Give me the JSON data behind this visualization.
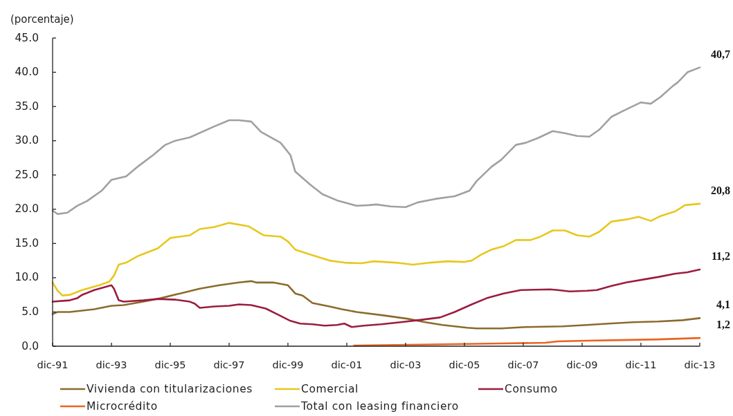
{
  "chart_data": {
    "type": "line",
    "ylabel": "(porcentaje)",
    "xlim": [
      "1991-12",
      "2013-12"
    ],
    "xticks": [
      {
        "value": "1991-12",
        "label": "dic-91"
      },
      {
        "value": "1993-12",
        "label": "dic-93"
      },
      {
        "value": "1995-12",
        "label": "dic-95"
      },
      {
        "value": "1997-12",
        "label": "dic-97"
      },
      {
        "value": "1999-12",
        "label": "dic-99"
      },
      {
        "value": "2001-12",
        "label": "dic-01"
      },
      {
        "value": "2003-12",
        "label": "dic-03"
      },
      {
        "value": "2005-12",
        "label": "dic-05"
      },
      {
        "value": "2007-12",
        "label": "dic-07"
      },
      {
        "value": "2009-12",
        "label": "dic-09"
      },
      {
        "value": "2011-12",
        "label": "dic-11"
      },
      {
        "value": "2013-12",
        "label": "dic-13"
      }
    ],
    "ylim": [
      0,
      45
    ],
    "yticks": [
      {
        "value": 0,
        "label": "0.0"
      },
      {
        "value": 5,
        "label": "5.0"
      },
      {
        "value": 10,
        "label": "10.0"
      },
      {
        "value": 15,
        "label": "15.0"
      },
      {
        "value": 20,
        "label": "20.0"
      },
      {
        "value": 25,
        "label": "25.0"
      },
      {
        "value": 30,
        "label": "30.0"
      },
      {
        "value": 35,
        "label": "35.0"
      },
      {
        "value": 40,
        "label": "40.0"
      },
      {
        "value": 45,
        "label": "45.0"
      }
    ],
    "legend": "bottom",
    "series": [
      {
        "name": "Vivienda con titularizaciones",
        "color": "#8b6a2c",
        "x": [
          "1991-12",
          "1992-02",
          "1992-07",
          "1993-05",
          "1993-12",
          "1994-05",
          "1995-01",
          "1995-08",
          "1996-04",
          "1996-12",
          "1997-08",
          "1998-04",
          "1998-09",
          "1998-11",
          "1999-06",
          "1999-12",
          "2000-03",
          "2000-06",
          "2000-10",
          "2001-05",
          "2001-10",
          "2002-04",
          "2003-03",
          "2004-01",
          "2004-08",
          "2005-03",
          "2006-01",
          "2006-05",
          "2007-03",
          "2008-01",
          "2009-04",
          "2010-02",
          "2010-11",
          "2011-09",
          "2012-07",
          "2013-05",
          "2013-12"
        ],
        "values": [
          4.7,
          5.0,
          5.0,
          5.4,
          5.9,
          6.0,
          6.5,
          7.0,
          7.7,
          8.4,
          8.9,
          9.3,
          9.5,
          9.3,
          9.3,
          8.9,
          7.7,
          7.4,
          6.3,
          5.8,
          5.4,
          5.0,
          4.5,
          4.0,
          3.5,
          3.1,
          2.7,
          2.6,
          2.6,
          2.8,
          2.9,
          3.1,
          3.3,
          3.5,
          3.6,
          3.8,
          4.1
        ],
        "value_labels": [
          null,
          null,
          null,
          null,
          null,
          null,
          null,
          null,
          null,
          null,
          null,
          null,
          null,
          null,
          null,
          null,
          null,
          null,
          null,
          null,
          null,
          null,
          null,
          null,
          null,
          null,
          null,
          null,
          null,
          null,
          null,
          null,
          null,
          null,
          null,
          null,
          "4,1"
        ]
      },
      {
        "name": "Comercial",
        "color": "#e6c81e",
        "x": [
          "1991-12",
          "1992-02",
          "1992-04",
          "1992-07",
          "1992-12",
          "1993-07",
          "1993-11",
          "1994-01",
          "1994-03",
          "1994-06",
          "1994-11",
          "1995-07",
          "1995-12",
          "1996-08",
          "1996-12",
          "1997-06",
          "1997-12",
          "1998-08",
          "1999-02",
          "1999-09",
          "1999-12",
          "2000-03",
          "2000-09",
          "2001-05",
          "2001-11",
          "2002-06",
          "2002-11",
          "2003-08",
          "2004-03",
          "2004-10",
          "2005-05",
          "2005-12",
          "2006-03",
          "2006-07",
          "2006-11",
          "2007-04",
          "2007-09",
          "2008-03",
          "2008-07",
          "2008-12",
          "2009-05",
          "2009-10",
          "2010-03",
          "2010-07",
          "2010-12",
          "2011-06",
          "2011-11",
          "2012-04",
          "2012-08",
          "2013-02",
          "2013-06",
          "2013-12"
        ],
        "values": [
          9.3,
          8.1,
          7.4,
          7.5,
          8.2,
          8.9,
          9.4,
          10.3,
          11.9,
          12.2,
          13.2,
          14.3,
          15.8,
          16.2,
          17.1,
          17.4,
          18.0,
          17.5,
          16.2,
          16.0,
          15.3,
          14.1,
          13.4,
          12.5,
          12.2,
          12.1,
          12.4,
          12.2,
          11.9,
          12.2,
          12.4,
          12.3,
          12.5,
          13.4,
          14.1,
          14.6,
          15.5,
          15.5,
          16.0,
          16.9,
          16.9,
          16.2,
          16.0,
          16.7,
          18.2,
          18.5,
          18.9,
          18.3,
          19.0,
          19.7,
          20.6,
          20.8
        ],
        "value_labels": [
          null,
          null,
          null,
          null,
          null,
          null,
          null,
          null,
          null,
          null,
          null,
          null,
          null,
          null,
          null,
          null,
          null,
          null,
          null,
          null,
          null,
          null,
          null,
          null,
          null,
          null,
          null,
          null,
          null,
          null,
          null,
          null,
          null,
          null,
          null,
          null,
          null,
          null,
          null,
          null,
          null,
          null,
          null,
          null,
          null,
          null,
          null,
          null,
          null,
          null,
          null,
          "20,8"
        ]
      },
      {
        "name": "Consumo",
        "color": "#9b1c3f",
        "x": [
          "1991-12",
          "1992-07",
          "1992-10",
          "1992-12",
          "1993-05",
          "1993-09",
          "1993-12",
          "1994-01",
          "1994-03",
          "1994-05",
          "1995-01",
          "1995-07",
          "1996-02",
          "1996-08",
          "1996-10",
          "1996-12",
          "1997-06",
          "1997-12",
          "1998-04",
          "1998-09",
          "1999-03",
          "1999-08",
          "2000-01",
          "2000-05",
          "2000-10",
          "2001-03",
          "2001-08",
          "2001-11",
          "2002-02",
          "2002-07",
          "2003-02",
          "2003-10",
          "2004-05",
          "2005-02",
          "2005-08",
          "2006-03",
          "2006-09",
          "2007-04",
          "2007-11",
          "2008-11",
          "2009-02",
          "2009-07",
          "2010-02",
          "2010-06",
          "2010-12",
          "2011-06",
          "2012-02",
          "2012-07",
          "2013-02",
          "2013-07",
          "2013-12"
        ],
        "values": [
          6.5,
          6.7,
          7.0,
          7.5,
          8.2,
          8.6,
          8.9,
          8.4,
          6.7,
          6.5,
          6.7,
          6.9,
          6.8,
          6.5,
          6.2,
          5.6,
          5.8,
          5.9,
          6.1,
          6.0,
          5.5,
          4.6,
          3.7,
          3.3,
          3.2,
          3.0,
          3.1,
          3.3,
          2.8,
          3.0,
          3.2,
          3.5,
          3.8,
          4.2,
          5.0,
          6.1,
          7.0,
          7.7,
          8.2,
          8.3,
          8.2,
          8.0,
          8.1,
          8.2,
          8.8,
          9.3,
          9.8,
          10.1,
          10.6,
          10.8,
          11.2
        ],
        "value_labels": [
          null,
          null,
          null,
          null,
          null,
          null,
          null,
          null,
          null,
          null,
          null,
          null,
          null,
          null,
          null,
          null,
          null,
          null,
          null,
          null,
          null,
          null,
          null,
          null,
          null,
          null,
          null,
          null,
          null,
          null,
          null,
          null,
          null,
          null,
          null,
          null,
          null,
          null,
          null,
          null,
          null,
          null,
          null,
          null,
          null,
          null,
          null,
          null,
          null,
          null,
          "11,2"
        ]
      },
      {
        "name": "Microcrédito",
        "color": "#e8641e",
        "x": [
          "2002-03",
          "2004-01",
          "2005-08",
          "2007-03",
          "2008-09",
          "2009-02",
          "2010-02",
          "2011-04",
          "2012-07",
          "2013-12"
        ],
        "values": [
          0.1,
          0.2,
          0.3,
          0.4,
          0.5,
          0.7,
          0.8,
          0.9,
          1.0,
          1.2
        ],
        "value_labels": [
          null,
          null,
          null,
          null,
          null,
          null,
          null,
          null,
          null,
          "1,2"
        ]
      },
      {
        "name": "Total con leasing financiero",
        "color": "#a0a0a0",
        "x": [
          "1991-12",
          "1992-02",
          "1992-06",
          "1992-10",
          "1993-02",
          "1993-08",
          "1993-12",
          "1994-06",
          "1994-11",
          "1995-05",
          "1995-10",
          "1996-02",
          "1996-08",
          "1997-06",
          "1997-12",
          "1998-04",
          "1998-09",
          "1999-01",
          "1999-09",
          "2000-01",
          "2000-03",
          "2000-09",
          "2001-02",
          "2001-08",
          "2002-04",
          "2002-09",
          "2002-12",
          "2003-06",
          "2003-12",
          "2004-05",
          "2004-12",
          "2005-08",
          "2006-02",
          "2006-05",
          "2006-11",
          "2007-03",
          "2007-09",
          "2008-01",
          "2008-06",
          "2008-12",
          "2009-05",
          "2009-10",
          "2010-03",
          "2010-07",
          "2010-12",
          "2011-05",
          "2011-12",
          "2012-04",
          "2012-08",
          "2013-01",
          "2013-03",
          "2013-07",
          "2013-12"
        ],
        "values": [
          19.8,
          19.3,
          19.5,
          20.5,
          21.2,
          22.7,
          24.3,
          24.8,
          26.3,
          27.9,
          29.4,
          30.0,
          30.5,
          32.1,
          33.0,
          33.0,
          32.8,
          31.3,
          29.7,
          27.9,
          25.5,
          23.6,
          22.2,
          21.3,
          20.5,
          20.6,
          20.7,
          20.4,
          20.3,
          21.0,
          21.5,
          21.9,
          22.7,
          24.1,
          26.2,
          27.2,
          29.4,
          29.7,
          30.4,
          31.4,
          31.1,
          30.7,
          30.6,
          31.6,
          33.5,
          34.4,
          35.6,
          35.4,
          36.4,
          38.0,
          38.5,
          40.0,
          40.7
        ],
        "value_labels": [
          null,
          null,
          null,
          null,
          null,
          null,
          null,
          null,
          null,
          null,
          null,
          null,
          null,
          null,
          null,
          null,
          null,
          null,
          null,
          null,
          null,
          null,
          null,
          null,
          null,
          null,
          null,
          null,
          null,
          null,
          null,
          null,
          null,
          null,
          null,
          null,
          null,
          null,
          null,
          null,
          null,
          null,
          null,
          null,
          null,
          null,
          null,
          null,
          null,
          null,
          null,
          null,
          "40,7"
        ]
      }
    ]
  }
}
